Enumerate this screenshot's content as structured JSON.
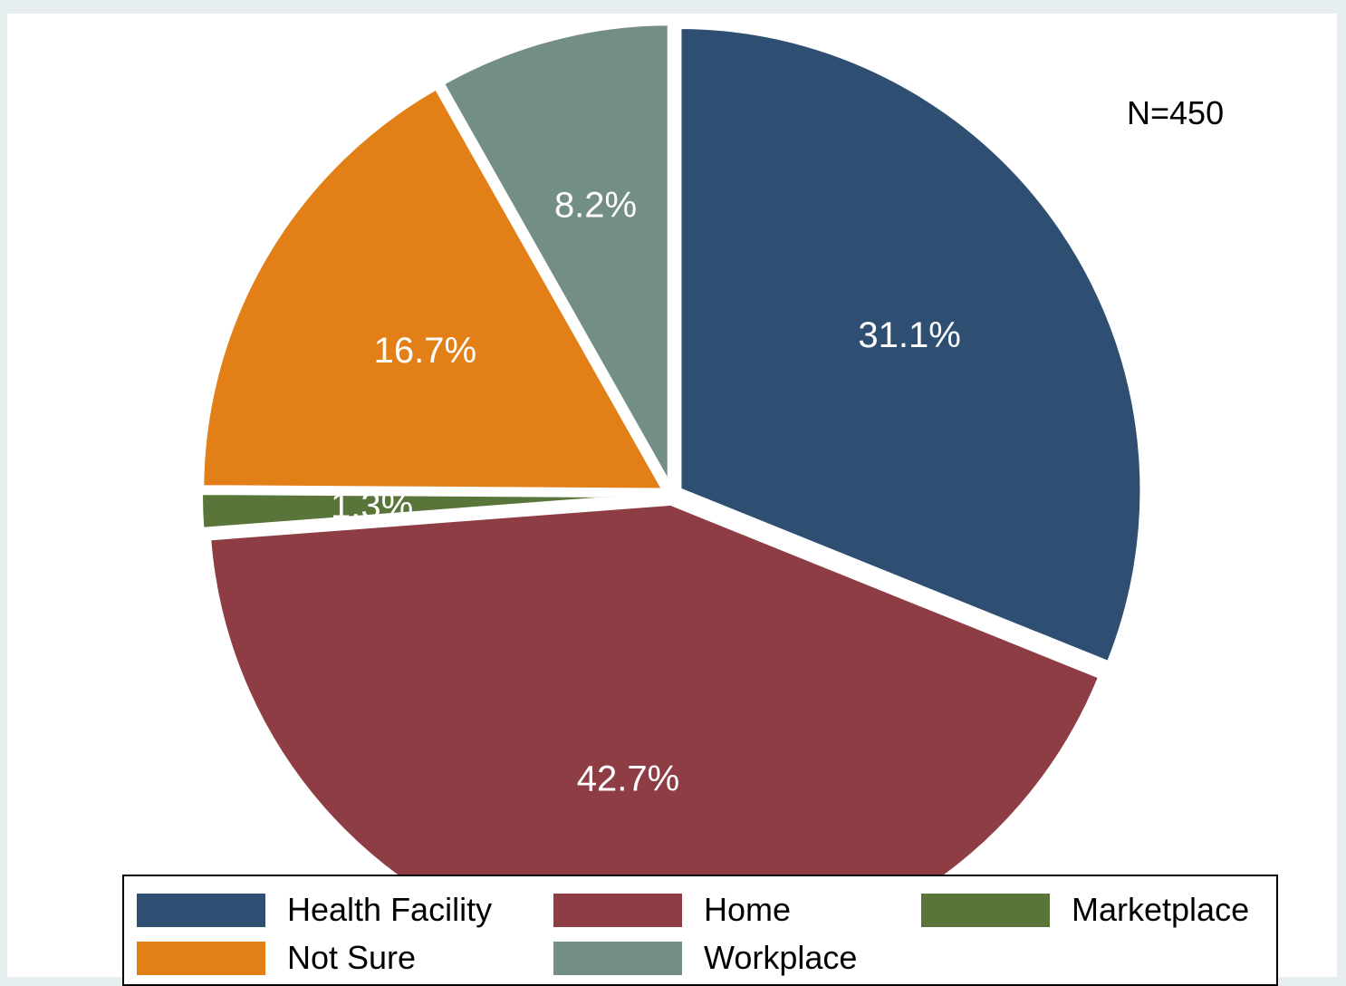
{
  "chart_data": {
    "type": "pie",
    "annotation": "N=450",
    "start": "12 o'clock",
    "direction": "clockwise",
    "exploded": true,
    "legend_position": "bottom",
    "slices": [
      {
        "name": "Health Facility",
        "value": 31.1,
        "label": "31.1%",
        "color": "#2e4f71"
      },
      {
        "name": "Home",
        "value": 42.7,
        "label": "42.7%",
        "color": "#8f3d45"
      },
      {
        "name": "Marketplace",
        "value": 1.3,
        "label": "1.3%",
        "color": "#5a753a"
      },
      {
        "name": "Not Sure",
        "value": 16.7,
        "label": "16.7%",
        "color": "#e27f17"
      },
      {
        "name": "Workplace",
        "value": 8.2,
        "label": "8.2%",
        "color": "#738e84"
      }
    ]
  }
}
